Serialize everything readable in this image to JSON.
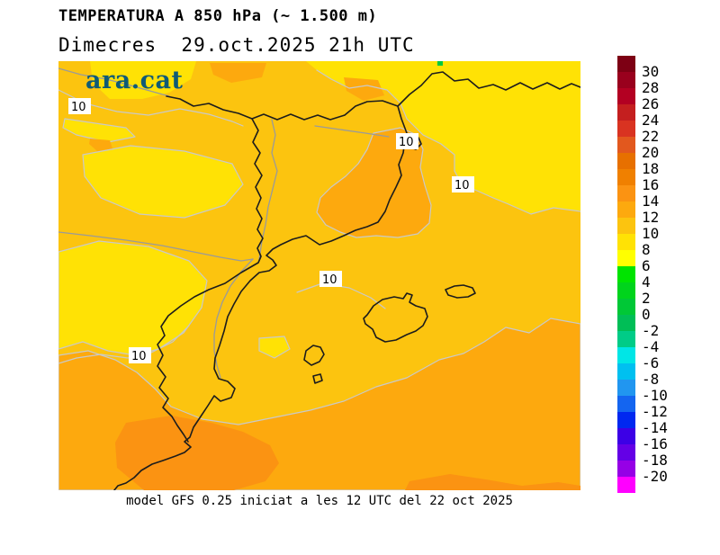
{
  "title": "TEMPERATURA A 850 hPa (~ 1.500 m)",
  "subtitle": "Dimecres  29.oct.2025 21h UTC",
  "footer": "model GFS 0.25 iniciat a les 12 UTC del 22 oct 2025",
  "logo": {
    "text": "ara.cat",
    "color": "#0f5b76"
  },
  "map": {
    "contour_labels": [
      "10",
      "10",
      "10",
      "10",
      "10"
    ],
    "palette": {
      "gold": "#fcc40f",
      "yellow": "#ffe205",
      "orange": "#fda90e",
      "deep_orange": "#fb9312",
      "green_speck": "#00c83c",
      "border_black": "#1c1c1c",
      "river_gray": "#9a9a9a",
      "iso_gray": "#c9c9c9",
      "label_box": "#ffffff"
    }
  },
  "legend": {
    "tick_labels": [
      "30",
      "28",
      "26",
      "24",
      "22",
      "20",
      "18",
      "16",
      "14",
      "12",
      "10",
      "8",
      "6",
      "4",
      "2",
      "0",
      "-2",
      "-4",
      "-6",
      "-8",
      "-10",
      "-12",
      "-14",
      "-16",
      "-18",
      "-20"
    ],
    "segment_colors": [
      "#7d0014",
      "#99001d",
      "#b30022",
      "#c41f1f",
      "#d93321",
      "#e2581e",
      "#e77000",
      "#f08000",
      "#fb9312",
      "#fda90e",
      "#fcc40f",
      "#ffe205",
      "#ffff00",
      "#00e400",
      "#00d41c",
      "#00c836",
      "#00be56",
      "#00cc87",
      "#00e6e6",
      "#00c0f0",
      "#2196f0",
      "#1465f0",
      "#0028f0",
      "#3c00e6",
      "#6400e6",
      "#9600e6",
      "#ff00ff"
    ]
  }
}
